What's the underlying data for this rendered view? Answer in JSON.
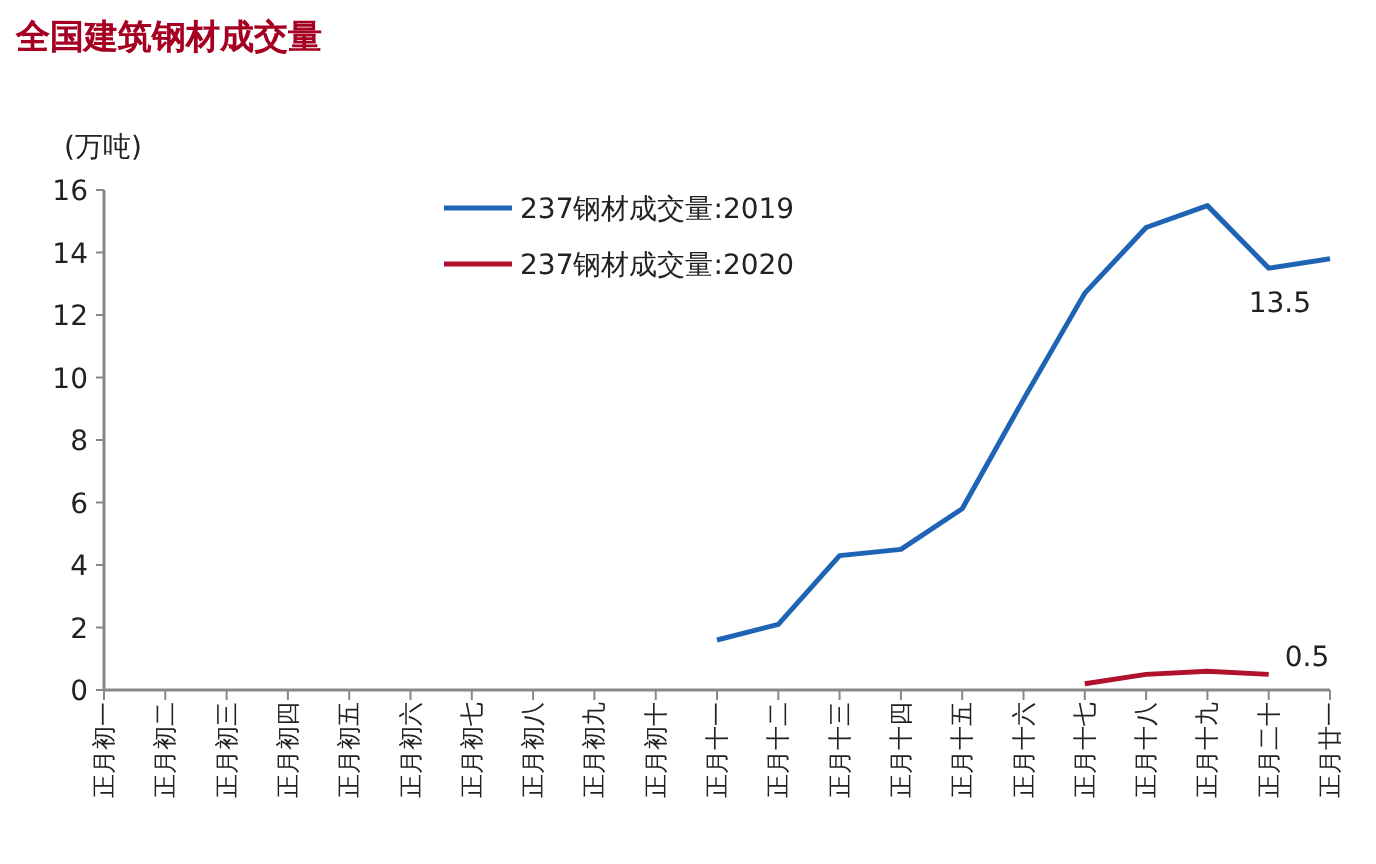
{
  "chart_data": {
    "type": "line",
    "title": "全国建筑钢材成交量",
    "ylabel": "(万吨)",
    "categories": [
      "正月初一",
      "正月初二",
      "正月初三",
      "正月初四",
      "正月初五",
      "正月初六",
      "正月初七",
      "正月初八",
      "正月初九",
      "正月初十",
      "正月十一",
      "正月十二",
      "正月十三",
      "正月十四",
      "正月十五",
      "正月十六",
      "正月十七",
      "正月十八",
      "正月十九",
      "正月二十",
      "正月廿一"
    ],
    "series": [
      {
        "name": "237钢材成交量:2019",
        "color": "#1f63b5",
        "values": [
          null,
          null,
          null,
          null,
          null,
          null,
          null,
          null,
          null,
          null,
          1.6,
          2.1,
          4.3,
          4.5,
          5.8,
          9.3,
          12.7,
          14.8,
          15.5,
          13.5,
          13.8
        ]
      },
      {
        "name": "237钢材成交量:2020",
        "color": "#b0122e",
        "values": [
          null,
          null,
          null,
          null,
          null,
          null,
          null,
          null,
          null,
          null,
          null,
          null,
          null,
          null,
          null,
          null,
          0.2,
          0.5,
          0.6,
          0.5,
          null
        ]
      }
    ],
    "ylim": [
      0,
      16
    ],
    "yticks": [
      0,
      2,
      4,
      6,
      8,
      10,
      12,
      14,
      16
    ],
    "legend": "top",
    "marker": "none",
    "line_style": "solid",
    "annotations": [
      {
        "text": "13.5",
        "x": "正月二十",
        "y": 13.5
      },
      {
        "text": "0.5",
        "x": "正月二十",
        "y": 0.5
      }
    ]
  }
}
